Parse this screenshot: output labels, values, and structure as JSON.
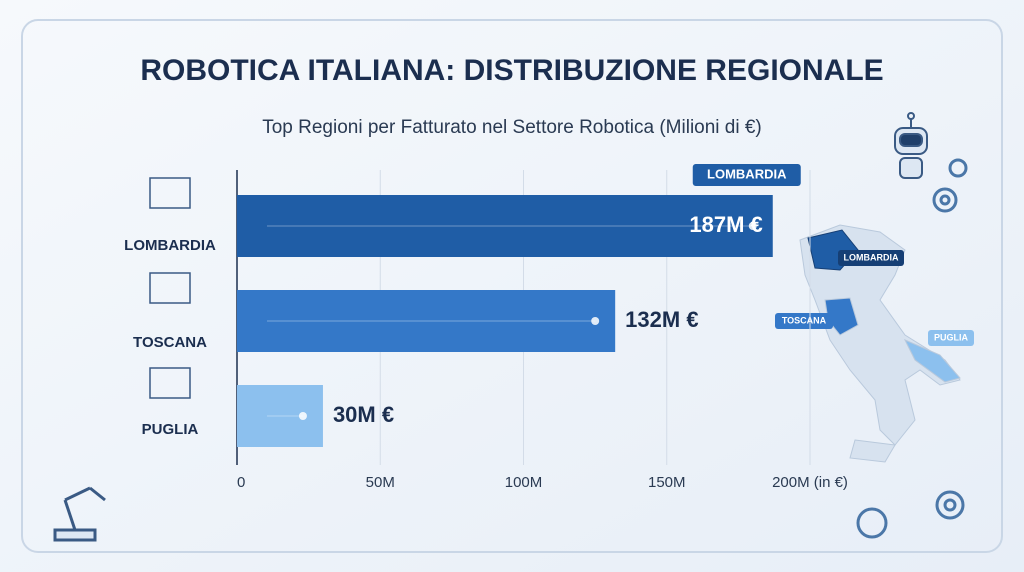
{
  "chart_data": {
    "type": "hbar",
    "title": "ROBOTICA ITALIANA: DISTRIBUZIONE REGIONALE",
    "subtitle": "Top Regioni per Fatturato nel Settore Robotica (Milioni di €)",
    "categories": [
      "LOMBARDIA",
      "TOSCANA",
      "PUGLIA"
    ],
    "values": [
      187,
      132,
      30
    ],
    "value_labels": [
      "187M €",
      "132M €",
      "30M €"
    ],
    "colors": [
      "#1f5da6",
      "#3478c8",
      "#8cc0ee"
    ],
    "xlim": [
      0,
      200
    ],
    "xticks": [
      0,
      {
        "value": 50,
        "label": "50M"
      },
      {
        "value": 100,
        "label": "100M"
      },
      {
        "value": 150,
        "label": "150M"
      },
      {
        "value": 200,
        "label": "200M (in €)"
      }
    ],
    "grid": true
  }
}
